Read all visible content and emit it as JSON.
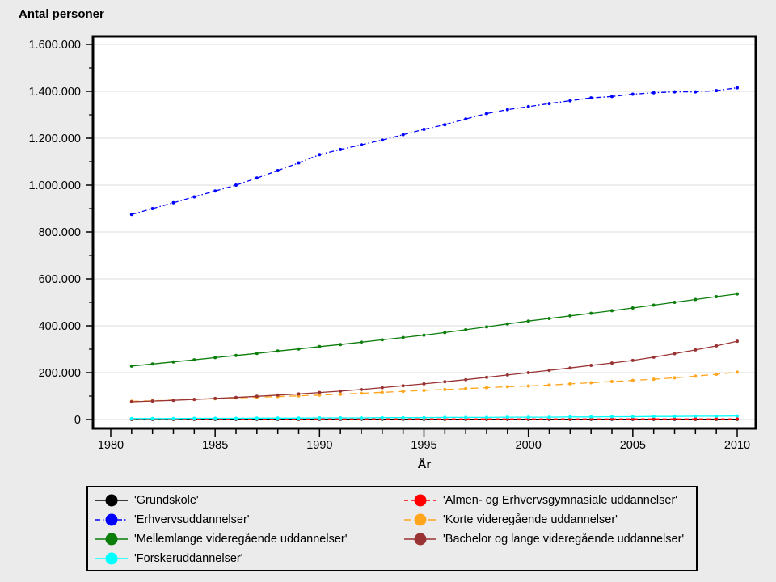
{
  "chart_data": {
    "type": "line",
    "title": "Antal personer",
    "xlabel": "År",
    "ylabel": "Antal personer",
    "legend_position": "bottom",
    "grid": "horizontal",
    "xlim": [
      1979.1,
      2010.9
    ],
    "ylim": [
      0,
      1634000
    ],
    "xticks_major": [
      1980,
      1985,
      1990,
      1995,
      2000,
      2005,
      2010
    ],
    "xticks_minor_step": 1,
    "yticks": [
      {
        "value": 0,
        "label": "0"
      },
      {
        "value": 200000,
        "label": "200.000"
      },
      {
        "value": 400000,
        "label": "400.000"
      },
      {
        "value": 600000,
        "label": "600.000"
      },
      {
        "value": 800000,
        "label": "800.000"
      },
      {
        "value": 1000000,
        "label": "1.000.000"
      },
      {
        "value": 1200000,
        "label": "1.200.000"
      },
      {
        "value": 1400000,
        "label": "1.400.000"
      },
      {
        "value": 1600000,
        "label": "1.600.000"
      }
    ],
    "yticks_minor_step": 100000,
    "x": [
      1981,
      1982,
      1983,
      1984,
      1985,
      1986,
      1987,
      1988,
      1989,
      1990,
      1991,
      1992,
      1993,
      1994,
      1995,
      1996,
      1997,
      1998,
      1999,
      2000,
      2001,
      2002,
      2003,
      2004,
      2005,
      2006,
      2007,
      2008,
      2009,
      2010
    ],
    "series": [
      {
        "name": "'Grundskole'",
        "color": "#000000",
        "line_style": "solid",
        "z": 1,
        "values": [
          1200,
          1200,
          1200,
          1200,
          1200,
          1200,
          1200,
          1200,
          1200,
          1200,
          1200,
          1200,
          1200,
          1200,
          1200,
          1200,
          1200,
          1200,
          1200,
          1200,
          1200,
          1200,
          1200,
          1200,
          1200,
          1200,
          1200,
          1200,
          1200,
          1200
        ]
      },
      {
        "name": "'Erhvervsuddannelser'",
        "color": "#0000FF",
        "line_style": "dash-dot",
        "z": 2,
        "values": [
          875000,
          900000,
          925000,
          950000,
          975000,
          1000000,
          1030000,
          1062000,
          1095000,
          1130000,
          1152000,
          1172000,
          1192000,
          1215000,
          1238000,
          1258000,
          1282000,
          1305000,
          1322000,
          1335000,
          1348000,
          1360000,
          1372000,
          1378000,
          1388000,
          1394000,
          1398000,
          1398000,
          1403000,
          1415000
        ]
      },
      {
        "name": "'Mellemlange videregående uddannelser'",
        "color": "#0B7D0B",
        "line_style": "solid",
        "z": 3,
        "values": [
          228000,
          237000,
          246000,
          255000,
          264000,
          273000,
          282000,
          292000,
          301000,
          311000,
          320000,
          330000,
          340000,
          350000,
          360000,
          371000,
          383000,
          395000,
          408000,
          420000,
          431000,
          442000,
          453000,
          464000,
          476000,
          488000,
          500000,
          512000,
          524000,
          536000
        ]
      },
      {
        "name": "'Forskeruddannelser'",
        "color": "#00FFFF",
        "line_style": "solid",
        "z": 7,
        "values": [
          4000,
          4000,
          4000,
          5000,
          5000,
          5000,
          6000,
          6000,
          6000,
          7000,
          7000,
          7000,
          8000,
          8000,
          8000,
          9000,
          9000,
          9000,
          10000,
          10000,
          10000,
          11000,
          11000,
          12000,
          12000,
          13000,
          13000,
          14000,
          14000,
          15000
        ]
      },
      {
        "name": "'Almen- og Erhvervsgymnasiale uddannelser'",
        "color": "#FF0000",
        "line_style": "dash",
        "z": 4,
        "values": [
          2500,
          2500,
          2500,
          2500,
          2500,
          2500,
          2500,
          2500,
          2500,
          2500,
          2500,
          2500,
          2500,
          2500,
          2500,
          2500,
          2500,
          2500,
          2500,
          2500,
          2500,
          2500,
          2500,
          2500,
          2500,
          2500,
          2500,
          2500,
          2500,
          2500
        ]
      },
      {
        "name": "'Korte videregående uddannelser'",
        "color": "#FFA51E",
        "line_style": "long-dash",
        "z": 5,
        "values": [
          78000,
          80000,
          83000,
          86000,
          89000,
          92000,
          95000,
          98000,
          101000,
          104000,
          108000,
          112000,
          116000,
          120000,
          124000,
          128000,
          132000,
          136000,
          140000,
          143000,
          147000,
          152000,
          157000,
          162000,
          167000,
          172000,
          178000,
          185000,
          193000,
          202000
        ]
      },
      {
        "name": "'Bachelor og lange videregående uddannelser'",
        "color": "#993333",
        "line_style": "solid",
        "z": 6,
        "values": [
          76000,
          79000,
          82000,
          86000,
          90000,
          94000,
          99000,
          104000,
          109000,
          115000,
          121000,
          128000,
          136000,
          144000,
          152000,
          161000,
          170000,
          180000,
          190000,
          200000,
          210000,
          220000,
          231000,
          241000,
          252000,
          266000,
          281000,
          297000,
          314000,
          334000
        ]
      }
    ],
    "legend": {
      "left_column": [
        0,
        1,
        2,
        3
      ],
      "right_column": [
        4,
        5,
        6
      ]
    }
  }
}
